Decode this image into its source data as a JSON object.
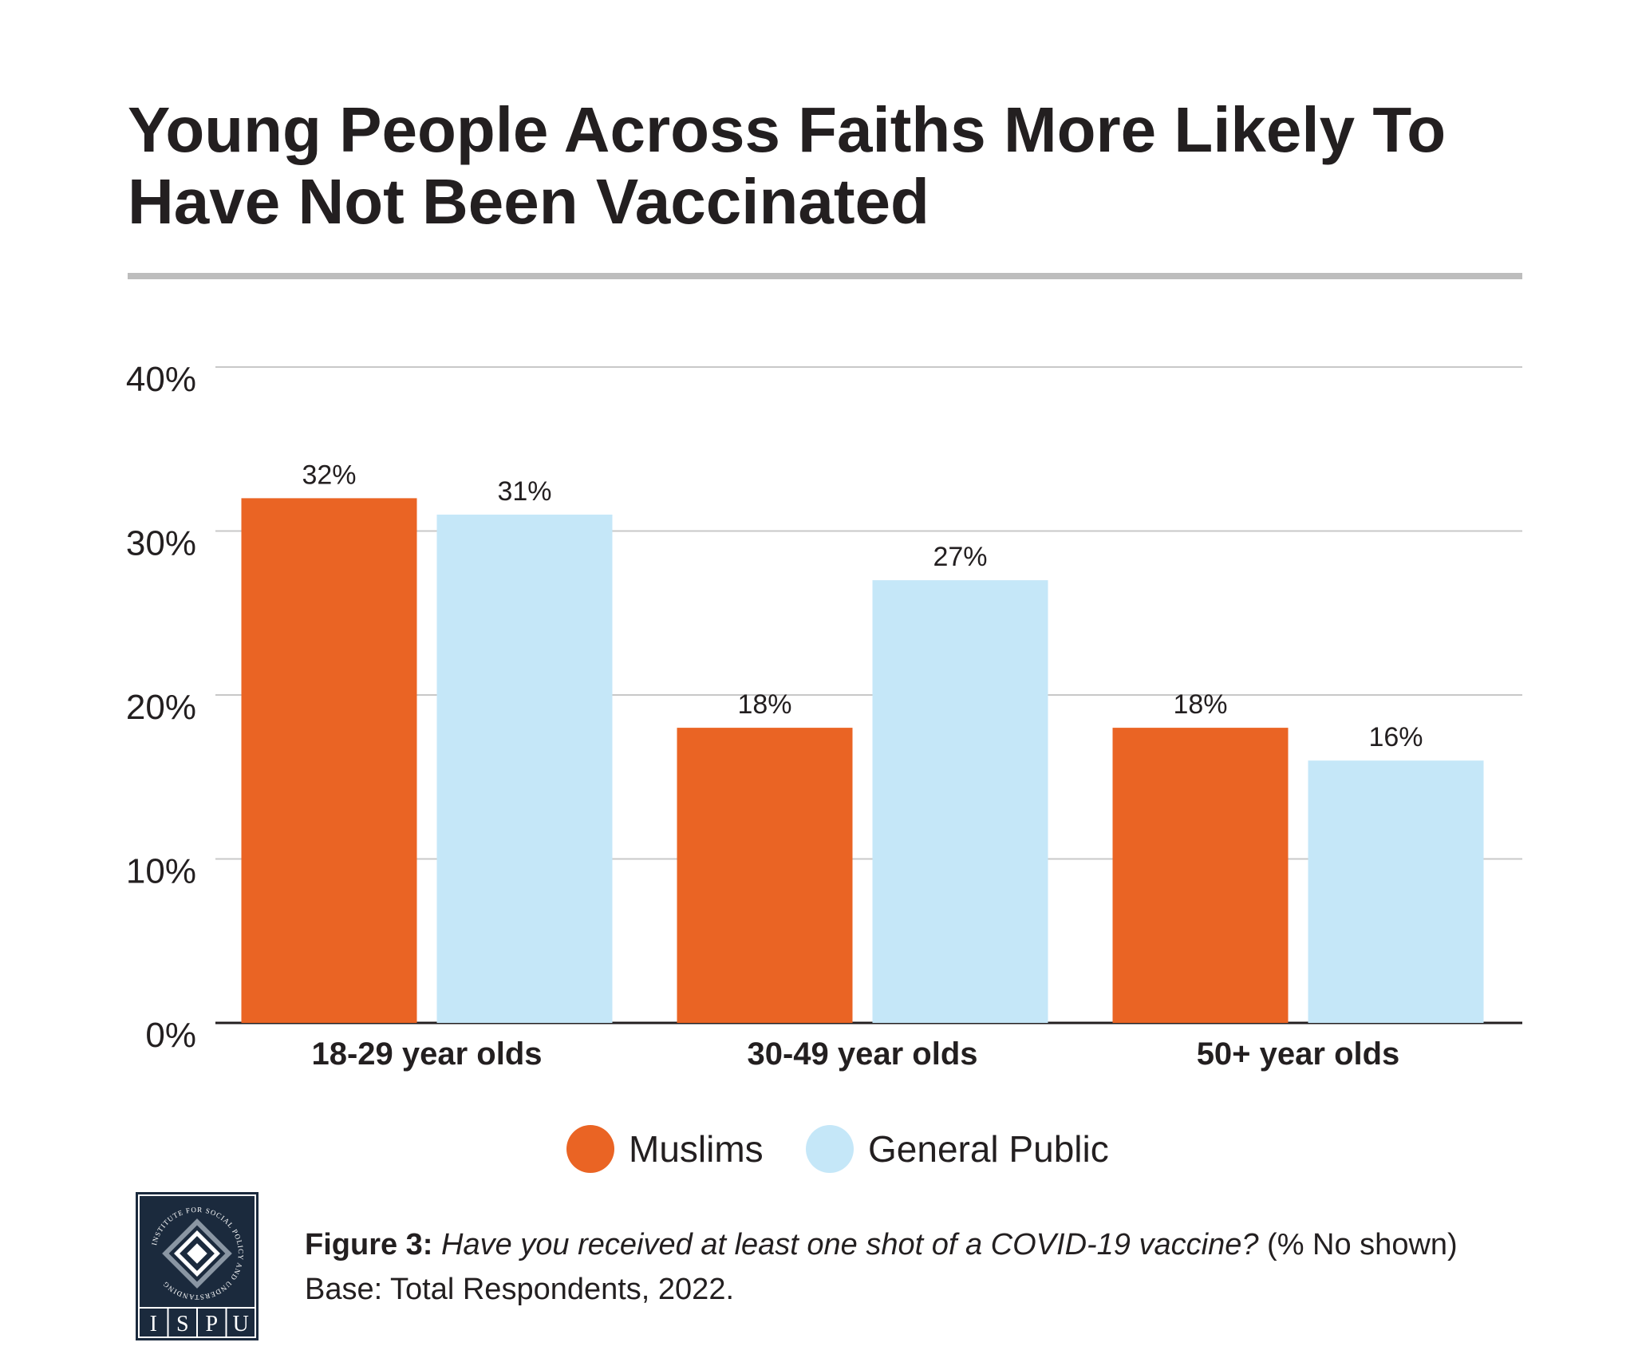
{
  "title": "Young People Across Faiths More Likely To Have Not Been Vaccinated",
  "chart_data": {
    "type": "bar",
    "categories": [
      "18-29 year olds",
      "30-49 year olds",
      "50+ year olds"
    ],
    "series": [
      {
        "name": "Muslims",
        "values": [
          32,
          18,
          18
        ],
        "labels": [
          "32%",
          "18%",
          "18%"
        ],
        "color": "#ea6424"
      },
      {
        "name": "General Public",
        "values": [
          31,
          27,
          16
        ],
        "labels": [
          "31%",
          "27%",
          "16%"
        ],
        "color": "#c5e7f8"
      }
    ],
    "ylim": [
      0,
      40
    ],
    "yticks": [
      0,
      10,
      20,
      30,
      40
    ],
    "ytick_labels": [
      "0%",
      "10%",
      "20%",
      "30%",
      "40%"
    ],
    "grid": true,
    "legend": "bottom-center"
  },
  "caption": {
    "figure_label": "Figure 3:",
    "question": "Have you received at least one shot of a COVID-19 vaccine?",
    "note": "(% No shown)",
    "base": "Base: Total Respondents, 2022."
  },
  "logo": {
    "text": "ISPU",
    "ring_text": "INSTITUTE FOR SOCIAL POLICY AND UNDERSTANDING"
  }
}
